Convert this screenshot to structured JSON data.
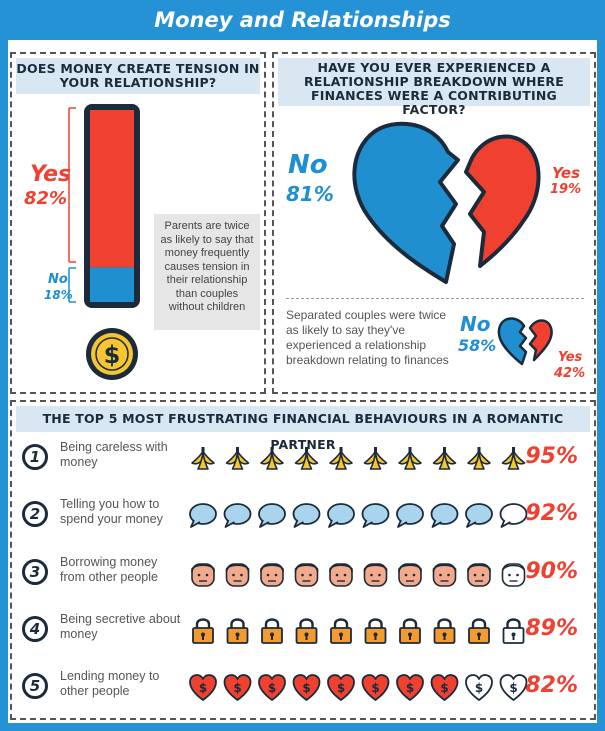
{
  "title": "Money and Relationships",
  "colors": {
    "blue": "#1f8fd0",
    "red": "#ef4030",
    "dark": "#1b2b3c",
    "banner": "#2692d6"
  },
  "section1": {
    "heading": "DOES MONEY CREATE TENSION IN YOUR RELATIONSHIP?",
    "yes_label": "Yes",
    "yes_value": "82%",
    "no_label": "No",
    "no_value": "18%",
    "note": "Parents are twice as likely to say that money frequently causes tension in their relationship than couples without children",
    "icon": "dollar-coin-icon"
  },
  "section2": {
    "heading": "HAVE YOU EVER EXPERIENCED A RELATIONSHIP BREAKDOWN WHERE FINANCES WERE A CONTRIBUTING FACTOR?",
    "no_label": "No",
    "no_value": "81%",
    "yes_label": "Yes",
    "yes_value": "19%",
    "note": "Separated couples were twice as likely to say they've experienced a relationship breakdown relating to finances",
    "small_no_label": "No",
    "small_no_value": "58%",
    "small_yes_label": "Yes",
    "small_yes_value": "42%",
    "icon": "broken-heart-icon"
  },
  "section3": {
    "heading": "THE TOP 5 MOST FRUSTRATING FINANCIAL BEHAVIOURS IN A ROMANTIC PARTNER",
    "rows": [
      {
        "rank": "1",
        "label": "Being careless with money",
        "value": "95%",
        "icon": "banana-peel-icon"
      },
      {
        "rank": "2",
        "label": "Telling you how to spend your money",
        "value": "92%",
        "icon": "speech-bubble-icon"
      },
      {
        "rank": "3",
        "label": "Borrowing money from other people",
        "value": "90%",
        "icon": "face-icon"
      },
      {
        "rank": "4",
        "label": "Being secretive about money",
        "value": "89%",
        "icon": "padlock-icon"
      },
      {
        "rank": "5",
        "label": "Lending money to other people",
        "value": "82%",
        "icon": "dollar-heart-icon"
      }
    ]
  },
  "chart_data": [
    {
      "type": "bar",
      "title": "DOES MONEY CREATE TENSION IN YOUR RELATIONSHIP?",
      "categories": [
        "Yes",
        "No"
      ],
      "values": [
        82,
        18
      ]
    },
    {
      "type": "pie",
      "title": "HAVE YOU EVER EXPERIENCED A RELATIONSHIP BREAKDOWN WHERE FINANCES WERE A CONTRIBUTING FACTOR?",
      "categories": [
        "No",
        "Yes"
      ],
      "values": [
        81,
        19
      ]
    },
    {
      "type": "pie",
      "categories": [
        "No",
        "Yes"
      ],
      "values": [
        58,
        42
      ]
    },
    {
      "type": "bar",
      "title": "THE TOP 5 MOST FRUSTRATING FINANCIAL BEHAVIOURS IN A ROMANTIC PARTNER",
      "categories": [
        "Being careless with money",
        "Telling you how to spend your money",
        "Borrowing money from other people",
        "Being secretive about money",
        "Lending money to other people"
      ],
      "values": [
        95,
        92,
        90,
        89,
        82
      ]
    }
  ]
}
